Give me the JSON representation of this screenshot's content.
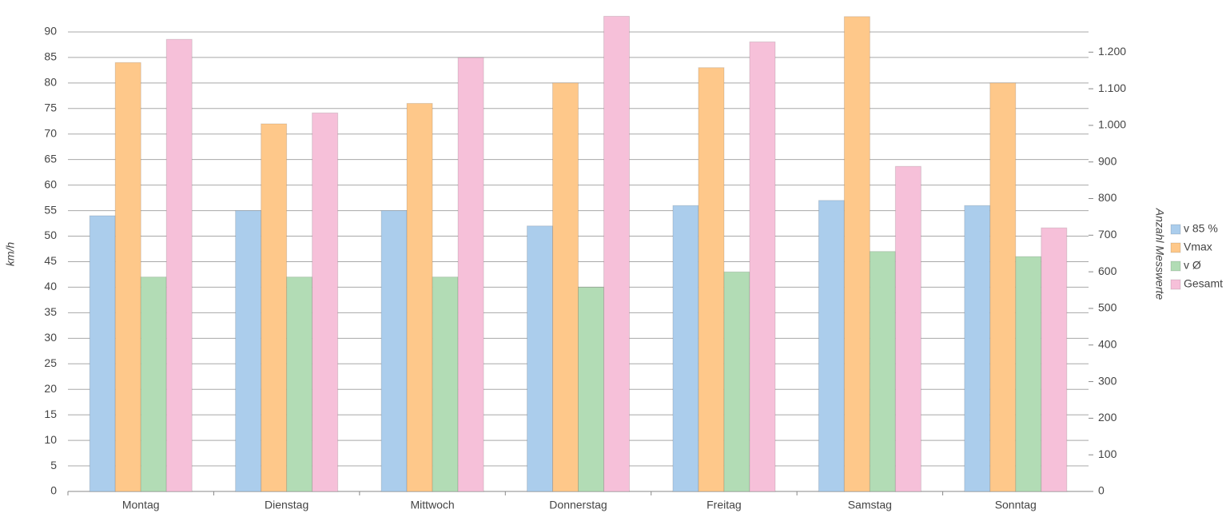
{
  "chart_data": {
    "type": "bar",
    "categories": [
      "Montag",
      "Dienstag",
      "Mittwoch",
      "Donnerstag",
      "Freitag",
      "Samstag",
      "Sonntag"
    ],
    "ylabel": "km/h",
    "y2label": "Anzahl Messwerte",
    "ylim": [
      0,
      95
    ],
    "yticks": [
      0,
      5,
      10,
      15,
      20,
      25,
      30,
      35,
      40,
      45,
      50,
      55,
      60,
      65,
      70,
      75,
      80,
      85,
      90
    ],
    "y2lim": [
      0,
      1325
    ],
    "y2ticks": [
      0,
      100,
      200,
      300,
      400,
      500,
      600,
      700,
      800,
      900,
      {
        "value": 1000,
        "label": "1.000"
      },
      {
        "value": 1100,
        "label": "1.100"
      },
      {
        "value": 1200,
        "label": "1.200"
      }
    ],
    "grid": true,
    "legend": "right",
    "series": [
      {
        "name": "v 85 %",
        "color": "#abcdec",
        "values": [
          54,
          55,
          55,
          52,
          56,
          57,
          56
        ]
      },
      {
        "name": "Vmax",
        "color": "#fec88a",
        "values": [
          84,
          72,
          76,
          80,
          83,
          93,
          80
        ]
      },
      {
        "name": "v Ø",
        "color": "#b2dcb5",
        "values": [
          42,
          42,
          42,
          40,
          43,
          47,
          46
        ]
      },
      {
        "name": "Gesamt",
        "color": "#f6c0d9",
        "axis": "y2",
        "values": [
          1235,
          1034,
          1185,
          1298,
          1228,
          888,
          720
        ]
      }
    ]
  }
}
